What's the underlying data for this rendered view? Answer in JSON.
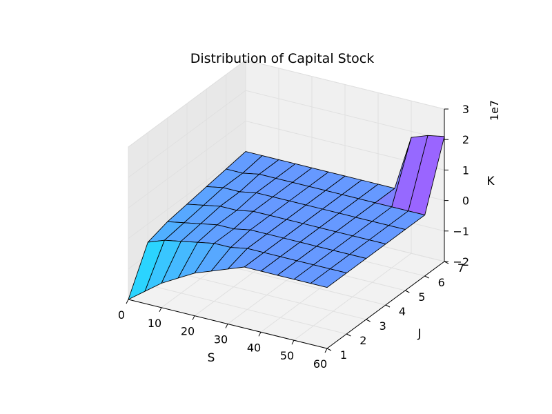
{
  "chart_data": {
    "type": "surface3d",
    "title": "Distribution of Capital Stock",
    "xlabel": "S",
    "ylabel": "J",
    "zlabel": "K",
    "z_offset_label": "1e7",
    "xlim": [
      0,
      60
    ],
    "ylim": [
      1,
      7
    ],
    "zlim": [
      -20000000,
      30000000
    ],
    "xticks": [
      "0",
      "10",
      "20",
      "30",
      "40",
      "50",
      "60"
    ],
    "yticks": [
      "1",
      "2",
      "3",
      "4",
      "5",
      "6",
      "7"
    ],
    "zticks": [
      "−2",
      "−1",
      "0",
      "1",
      "2",
      "3"
    ],
    "colormap": "cool",
    "colors": {
      "pane": "#f0f0f0",
      "grid": "#e0e0e0",
      "edge": "#000000"
    },
    "s_values": [
      0,
      5,
      10,
      15,
      20,
      25,
      30,
      35,
      40,
      45,
      50,
      55,
      60
    ],
    "j_values": [
      1,
      2,
      3,
      4,
      5,
      6,
      7
    ],
    "k_grid_1e7": [
      [
        -2.0,
        -1.6,
        -1.2,
        -0.9,
        -0.6,
        -0.4,
        -0.2,
        0.0,
        0.0,
        0.0,
        0.0,
        0.0,
        0.0
      ],
      [
        -0.6,
        -0.4,
        -0.3,
        -0.2,
        -0.1,
        -0.1,
        0.0,
        0.0,
        0.0,
        0.0,
        0.0,
        0.0,
        0.0
      ],
      [
        -0.4,
        -0.3,
        -0.2,
        -0.1,
        -0.1,
        0.0,
        0.0,
        0.0,
        0.0,
        0.0,
        0.0,
        0.0,
        0.0
      ],
      [
        -0.3,
        -0.2,
        -0.1,
        -0.1,
        0.0,
        0.0,
        0.0,
        0.0,
        0.0,
        0.0,
        0.0,
        0.0,
        0.0
      ],
      [
        -0.2,
        -0.1,
        -0.1,
        0.0,
        0.0,
        0.0,
        0.0,
        0.0,
        0.0,
        0.0,
        0.0,
        0.0,
        0.0
      ],
      [
        -0.1,
        -0.1,
        0.0,
        0.0,
        0.0,
        0.0,
        0.0,
        0.0,
        0.0,
        0.0,
        0.0,
        0.0,
        0.0
      ],
      [
        0.0,
        0.0,
        0.0,
        0.0,
        0.0,
        0.0,
        0.0,
        0.0,
        0.0,
        0.0,
        1.8,
        2.0,
        2.1
      ]
    ]
  }
}
